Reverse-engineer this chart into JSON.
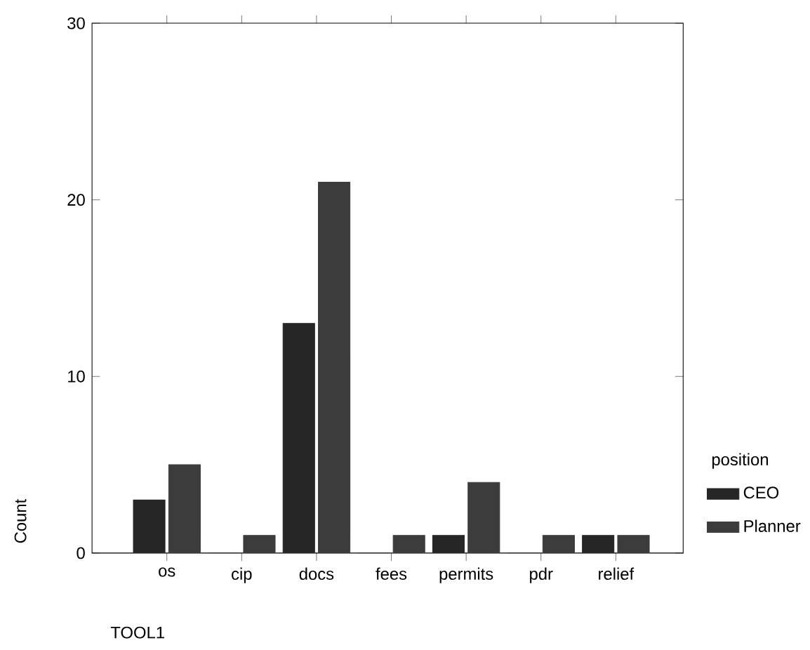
{
  "chart_data": {
    "type": "bar",
    "xlabel": "TOOL1",
    "ylabel": "Count",
    "legend_title": "position",
    "categories": [
      "os",
      "cip",
      "docs",
      "fees",
      "permits",
      "pdr",
      "relief"
    ],
    "series": [
      {
        "name": "CEO",
        "color": "#262626",
        "values": [
          3,
          0,
          13,
          0,
          1,
          0,
          1
        ]
      },
      {
        "name": "Planner",
        "color": "#3c3c3c",
        "values": [
          5,
          1,
          21,
          1,
          4,
          1,
          1
        ]
      }
    ],
    "ylim": [
      0,
      30
    ],
    "yticks": [
      0,
      10,
      20,
      30
    ],
    "legend": "right"
  }
}
